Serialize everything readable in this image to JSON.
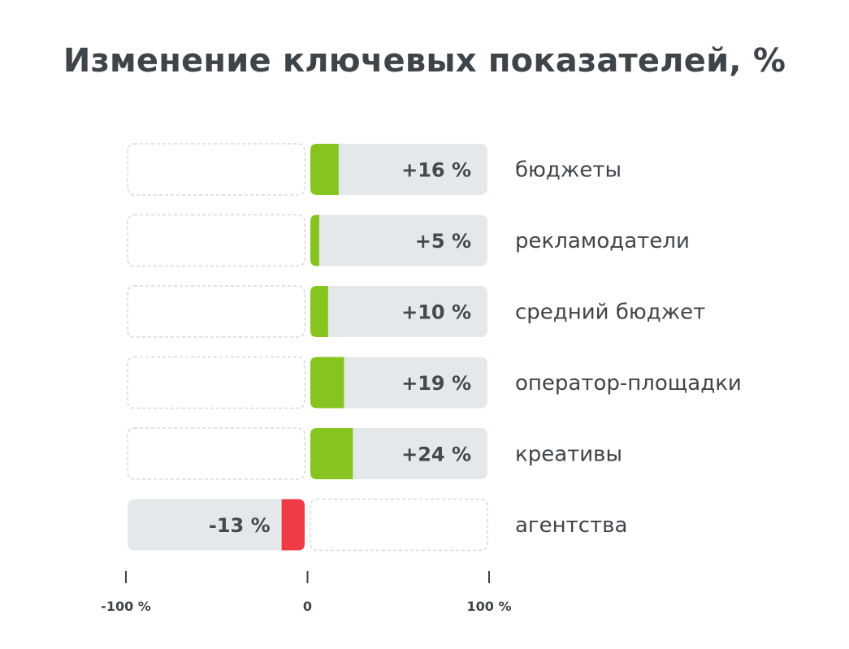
{
  "chart_data": {
    "type": "bar",
    "orientation": "horizontal",
    "title": "Изменение ключевых показателей, %",
    "categories": [
      "бюджеты",
      "рекламодатели",
      "средний бюджет",
      "оператор-площадки",
      "креативы",
      "агентства"
    ],
    "values": [
      16,
      5,
      10,
      19,
      24,
      -13
    ],
    "value_labels": [
      "+16 %",
      "+5 %",
      "+10 %",
      "+19 %",
      "+24 %",
      "-13 %"
    ],
    "xlim": [
      -100,
      100
    ],
    "x_ticks": [
      {
        "value": -100,
        "label": "-100 %"
      },
      {
        "value": 0,
        "label": "0"
      },
      {
        "value": 100,
        "label": "100 %"
      }
    ],
    "colors": {
      "positive": "#86c51f",
      "negative": "#ef3b45",
      "track": "#e5e8eb",
      "empty_border": "#d5d8db",
      "tick": "#3f4448"
    }
  }
}
